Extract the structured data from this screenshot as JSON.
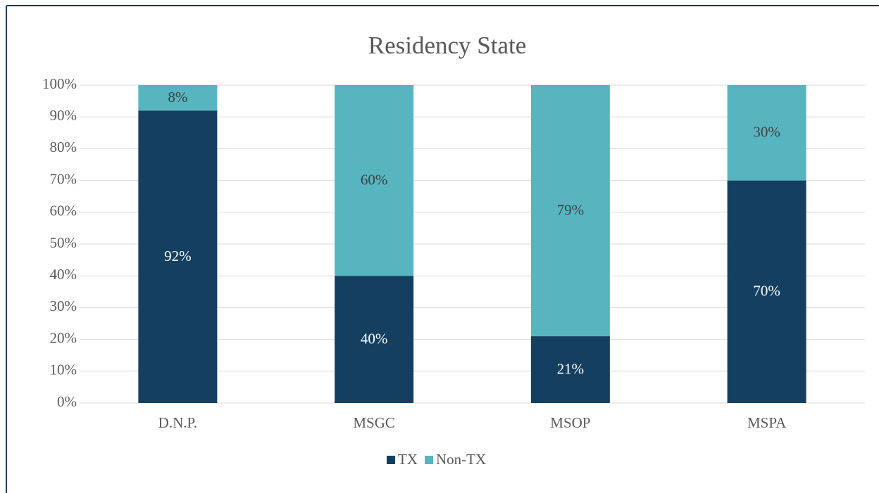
{
  "chart_data": {
    "type": "stacked_bar",
    "title": "Residency State",
    "categories": [
      "D.N.P.",
      "MSGC",
      "MSOP",
      "MSPA"
    ],
    "series": [
      {
        "name": "TX",
        "color": "#143f60",
        "values": [
          92,
          40,
          21,
          70
        ],
        "value_labels": [
          "92%",
          "40%",
          "21%",
          "70%"
        ]
      },
      {
        "name": "Non-TX",
        "color": "#57b5bf",
        "values": [
          8,
          60,
          79,
          30
        ],
        "value_labels": [
          "8%",
          "60%",
          "79%",
          "30%"
        ]
      }
    ],
    "ylim": [
      0,
      100
    ],
    "yticks": [
      {
        "value": 0,
        "label": "0%"
      },
      {
        "value": 10,
        "label": "10%"
      },
      {
        "value": 20,
        "label": "20%"
      },
      {
        "value": 30,
        "label": "30%"
      },
      {
        "value": 40,
        "label": "40%"
      },
      {
        "value": 50,
        "label": "50%"
      },
      {
        "value": 60,
        "label": "60%"
      },
      {
        "value": 70,
        "label": "70%"
      },
      {
        "value": 80,
        "label": "80%"
      },
      {
        "value": 90,
        "label": "90%"
      },
      {
        "value": 100,
        "label": "100%"
      }
    ],
    "grid": true,
    "legend": "bottom"
  }
}
